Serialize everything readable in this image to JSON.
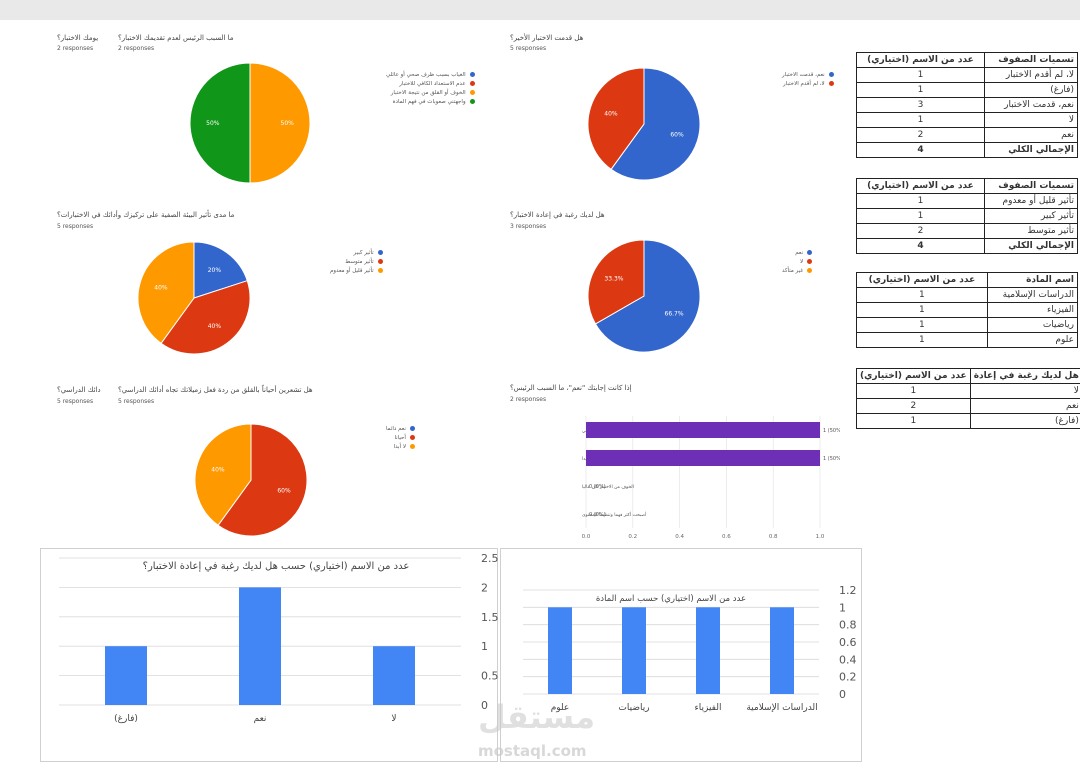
{
  "pies": [
    {
      "id": "p1",
      "title": "ما السبب الرئيس لعدم تقديمك الاختبار؟",
      "title_extra": "يومك الاختبار؟",
      "responses": "2 responses",
      "responses_extra": "2 responses",
      "legend": [
        "الغياب بسبب ظرف صحي أو عائلي",
        "عدم الاستعداد الكافي للاختبار",
        "الخوف أو القلق من نتيجة الاختبار",
        "واجهتني صعوبات في فهم المادة"
      ],
      "slices": [
        {
          "value": 50,
          "label": "50%",
          "color": "#ff9900"
        },
        {
          "value": 50,
          "label": "50%",
          "color": "#109618"
        }
      ]
    },
    {
      "id": "p2",
      "title": "هل قدمت الاختبار الأخير؟",
      "responses": "5 responses",
      "legend": [
        "نعم، قدمت الاختبار",
        "لا، لم أقدم الاختبار"
      ],
      "slices": [
        {
          "value": 60,
          "label": "60%",
          "color": "#3366cc"
        },
        {
          "value": 40,
          "label": "40%",
          "color": "#dc3912"
        }
      ]
    },
    {
      "id": "p3",
      "title": "ما مدى تأثير البيئة الصفية على تركيزك وأدائك في الاختبارات؟",
      "responses": "5 responses",
      "legend": [
        "تأثير كبير",
        "تأثير متوسط",
        "تأثير قليل أو معدوم"
      ],
      "slices": [
        {
          "value": 20,
          "label": "20%",
          "color": "#3366cc"
        },
        {
          "value": 40,
          "label": "40%",
          "color": "#dc3912"
        },
        {
          "value": 40,
          "label": "40%",
          "color": "#ff9900"
        }
      ]
    },
    {
      "id": "p4",
      "title": "هل لديك رغبة في إعادة الاختبار؟",
      "responses": "3 responses",
      "legend": [
        "نعم",
        "لا",
        "غير متأكد"
      ],
      "slices": [
        {
          "value": 66.7,
          "label": "66.7%",
          "color": "#3366cc"
        },
        {
          "value": 33.3,
          "label": "33.3%",
          "color": "#dc3912"
        }
      ]
    },
    {
      "id": "p5",
      "title": "هل تشعرين أحياناً بالقلق من ردة فعل زميلاتك تجاه أدائك الدراسي؟",
      "title_extra": "دائك الدراسي؟",
      "responses": "5 responses",
      "responses_extra": "5 responses",
      "legend": [
        "نعم دائما",
        "أحيانا",
        "لا أبدا"
      ],
      "slices": [
        {
          "value": 60,
          "label": "60%",
          "color": "#dc3912"
        },
        {
          "value": 40,
          "label": "40%",
          "color": "#ff9900"
        }
      ]
    }
  ],
  "hbar": {
    "title": "إذا كانت إجابتك \"نعم\"، ما السبب الرئيس؟",
    "responses": "2 responses",
    "bars": [
      {
        "label": "لتحسين درجتي",
        "value": 1,
        "text": "1 (50%)"
      },
      {
        "label": "لم أكن مستعدة جيدا",
        "value": 1,
        "text": "1 (50%)"
      },
      {
        "label": "الخوف من الاختبار كان عاليا",
        "value": 0,
        "text": "0 (0%)"
      },
      {
        "label": "أصبحت أكثر فهما وتنظيما للمحتوى",
        "value": 0,
        "text": "0 (0%)"
      }
    ],
    "ticks": [
      "0.0",
      "0.2",
      "0.4",
      "0.6",
      "0.8",
      "1.0"
    ],
    "color": "#6c2fb5"
  },
  "tables": [
    {
      "header": [
        "تسميات الصفوف",
        "عدد من الاسم (اختياري)"
      ],
      "rows": [
        [
          "لا، لم أقدم الاختبار",
          "1"
        ],
        [
          "(فارغ)",
          "1"
        ],
        [
          "نعم، قدمت الاختبار",
          "3"
        ],
        [
          "لا",
          "1"
        ],
        [
          "نعم",
          "2"
        ]
      ],
      "total": [
        "الإجمالي الكلي",
        "4"
      ]
    },
    {
      "header": [
        "تسميات الصفوف",
        "عدد من الاسم (اختياري)"
      ],
      "rows": [
        [
          "تأثير قليل أو معدوم",
          "1"
        ],
        [
          "تأثير كبير",
          "1"
        ],
        [
          "تأثير متوسط",
          "2"
        ]
      ],
      "total": [
        "الإجمالي الكلي",
        "4"
      ]
    },
    {
      "header": [
        "اسم المادة",
        "عدد من الاسم (اختياري)"
      ],
      "rows": [
        [
          "الدراسات الإسلامية",
          "1"
        ],
        [
          "الفيزياء",
          "1"
        ],
        [
          "رياضيات",
          "1"
        ],
        [
          "علوم",
          "1"
        ]
      ],
      "total": null
    },
    {
      "header": [
        "هل لديك رغبة في إعادة",
        "عدد من الاسم (اختياري)"
      ],
      "rows": [
        [
          "لا",
          "1"
        ],
        [
          "نعم",
          "2"
        ],
        [
          "(فارغ)",
          "1"
        ]
      ],
      "total": null
    }
  ],
  "chart_data": [
    {
      "type": "bar",
      "title": "عدد من الاسم (اختياري) حسب هل لديك رغبة في إعادة الاختبار؟",
      "categories": [
        "(فارغ)",
        "نعم",
        "لا"
      ],
      "values": [
        1,
        2,
        1
      ],
      "ylim": [
        0,
        2.5
      ],
      "ticks": [
        "0",
        "0.5",
        "1",
        "1.5",
        "2",
        "2.5"
      ],
      "color": "#4285f4"
    },
    {
      "type": "bar",
      "title": "عدد من الاسم (اختياري) حسب اسم المادة",
      "categories": [
        "علوم",
        "رياضيات",
        "الفيزياء",
        "الدراسات الإسلامية"
      ],
      "values": [
        1,
        1,
        1,
        1
      ],
      "ylim": [
        0,
        1.2
      ],
      "ticks": [
        "0",
        "0.2",
        "0.4",
        "0.6",
        "0.8",
        "1",
        "1.2"
      ],
      "color": "#4285f4"
    }
  ],
  "watermark": {
    "brand": "مستقل",
    "domain": "mostaql.com"
  }
}
